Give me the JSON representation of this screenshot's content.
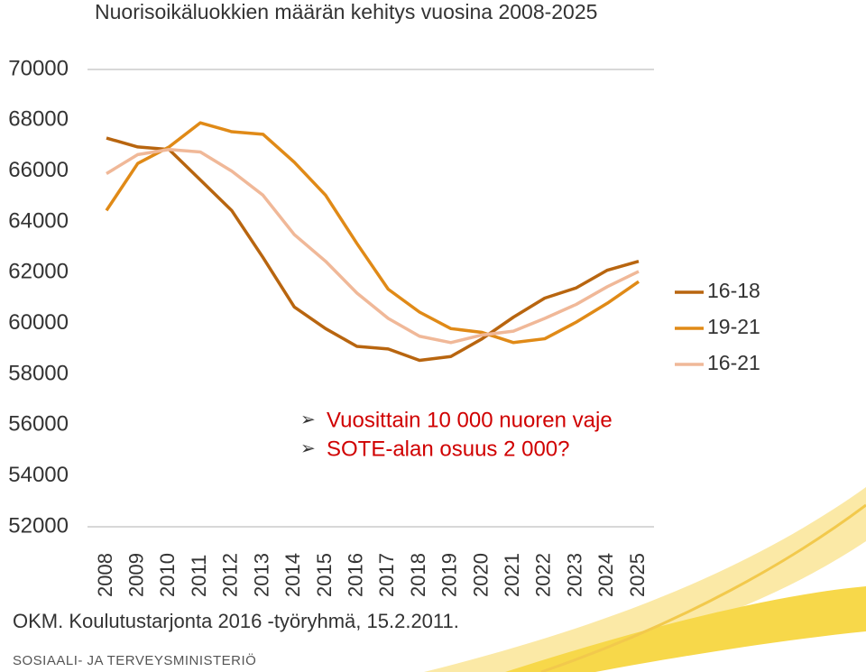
{
  "chart_data": {
    "type": "line",
    "title": "Nuorisoikäluokkien määrän kehitys vuosina 2008-2025",
    "categories": [
      "2008",
      "2009",
      "2010",
      "2011",
      "2012",
      "2013",
      "2014",
      "2015",
      "2016",
      "2017",
      "2018",
      "2019",
      "2020",
      "2021",
      "2022",
      "2023",
      "2024",
      "2025"
    ],
    "series": [
      {
        "name": "16-18",
        "color": "#b8650f",
        "values": [
          67300,
          66950,
          66850,
          65650,
          64450,
          62600,
          60650,
          59800,
          59100,
          59000,
          58550,
          58700,
          59400,
          60250,
          61000,
          61400,
          62100,
          62450
        ]
      },
      {
        "name": "19-21",
        "color": "#e08a17",
        "values": [
          64450,
          66300,
          66950,
          67900,
          67550,
          67450,
          66350,
          65050,
          63150,
          61350,
          60450,
          59800,
          59650,
          59250,
          59400,
          60050,
          60800,
          61650
        ]
      },
      {
        "name": "16-21",
        "color": "#f0b898",
        "values": [
          65900,
          66650,
          66850,
          66750,
          66000,
          65050,
          63500,
          62450,
          61200,
          60200,
          59500,
          59250,
          59550,
          59700,
          60200,
          60750,
          61450,
          62050
        ]
      }
    ],
    "ylim": [
      52000,
      70000
    ],
    "yticks": [
      52000,
      54000,
      56000,
      58000,
      60000,
      62000,
      64000,
      66000,
      68000,
      70000
    ],
    "legend": "right",
    "annotations": [
      "Vuosittain 10 000 nuoren vaje",
      "SOTE-alan osuus 2 000?"
    ],
    "source": "OKM. Koulutustarjonta 2016 -työryhmä, 15.2.2011."
  },
  "footer": {
    "organization": "SOSIAALI- JA TERVEYSMINISTERIÖ"
  }
}
